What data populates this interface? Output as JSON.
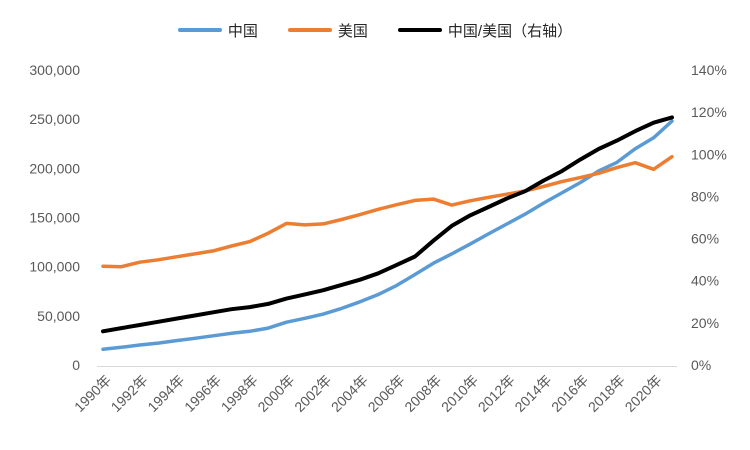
{
  "chart_data": {
    "type": "line",
    "title": "",
    "legend_position": "top",
    "grid": false,
    "axis_line_color": "#d9d9d9",
    "tick_label_color": "#595959",
    "legend_text_color": "#262626",
    "x": [
      1990,
      1991,
      1992,
      1993,
      1994,
      1995,
      1996,
      1997,
      1998,
      1999,
      2000,
      2001,
      2002,
      2003,
      2004,
      2005,
      2006,
      2007,
      2008,
      2009,
      2010,
      2011,
      2012,
      2013,
      2014,
      2015,
      2016,
      2017,
      2018,
      2019,
      2020,
      2021
    ],
    "x_tick_labels": [
      "1990年",
      "1992年",
      "1994年",
      "1996年",
      "1998年",
      "2000年",
      "2002年",
      "2004年",
      "2006年",
      "2008年",
      "2010年",
      "2012年",
      "2014年",
      "2016年",
      "2018年",
      "2020年"
    ],
    "left_axis": {
      "min": 0,
      "max": 300000,
      "tick_labels": [
        "0",
        "50,000",
        "100,000",
        "150,000",
        "200,000",
        "250,000",
        "300,000"
      ]
    },
    "right_axis": {
      "min": 0,
      "max": 140,
      "tick_labels": [
        "0%",
        "20%",
        "40%",
        "60%",
        "80%",
        "100%",
        "120%",
        "140%"
      ]
    },
    "series": [
      {
        "name": "中国",
        "color": "#5B9BD5",
        "axis": "left",
        "values": [
          16000,
          18000,
          20300,
          22300,
          24800,
          27200,
          29700,
          32200,
          34300,
          37500,
          43500,
          47500,
          51800,
          57600,
          64300,
          71700,
          81000,
          92000,
          103500,
          113000,
          123000,
          133300,
          143400,
          153500,
          164600,
          175000,
          185500,
          197300,
          206000,
          220000,
          231000,
          248000
        ]
      },
      {
        "name": "美国",
        "color": "#ED7D31",
        "axis": "left",
        "values": [
          100500,
          100000,
          104500,
          107000,
          110000,
          113000,
          116000,
          121000,
          125500,
          134000,
          144000,
          142500,
          143500,
          148000,
          153000,
          158300,
          163000,
          167400,
          168700,
          162600,
          167000,
          170400,
          173700,
          177100,
          181500,
          186500,
          190600,
          195000,
          200700,
          205700,
          199000,
          211800
        ]
      },
      {
        "name": "中国/美国（右轴）",
        "color": "#000000",
        "axis": "right",
        "values": [
          16,
          17.5,
          19,
          20.5,
          22,
          23.5,
          25,
          26.5,
          27.5,
          29,
          31.5,
          33.5,
          35.5,
          38,
          40.5,
          43.5,
          47.5,
          51.5,
          59,
          66,
          71,
          75,
          79,
          82.5,
          87.5,
          92,
          97.5,
          102.5,
          106.5,
          111,
          115,
          117.5
        ]
      }
    ]
  }
}
